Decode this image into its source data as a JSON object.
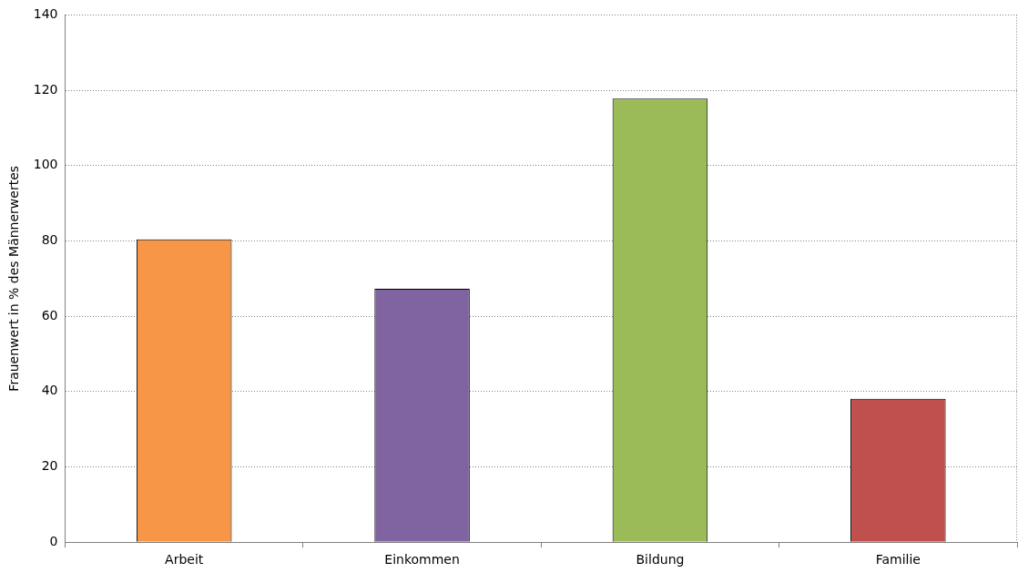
{
  "chart_data": {
    "type": "bar",
    "ylabel": "Frauenwert in % des Männerwertes",
    "categories": [
      "Arbeit",
      "Einkommen",
      "Bildung",
      "Familie"
    ],
    "values": [
      80.4,
      67.3,
      117.8,
      38.1
    ],
    "colors": [
      "#f79646",
      "#8064a2",
      "#9bbb59",
      "#c0504d"
    ],
    "ylim": [
      0,
      140
    ],
    "yticks": [
      0,
      20,
      40,
      60,
      80,
      100,
      120,
      140
    ],
    "grid": "y",
    "legend": false
  }
}
